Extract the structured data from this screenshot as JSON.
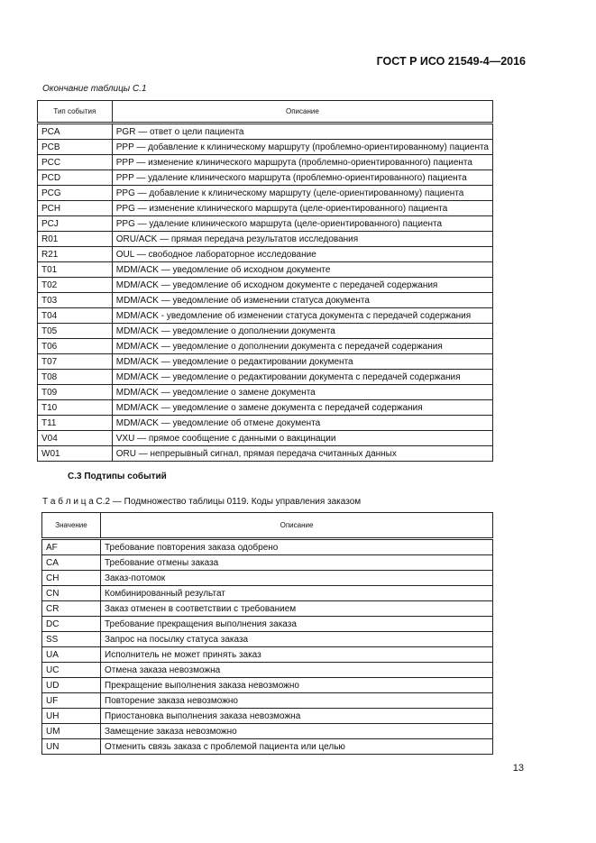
{
  "header": "ГОСТ Р ИСО 21549-4—2016",
  "table1": {
    "caption": "Окончание таблицы С.1",
    "columns": [
      "Тип события",
      "Описание"
    ],
    "rows": [
      [
        "PCA",
        "PGR — ответ о цели пациента"
      ],
      [
        "PCB",
        "PPP — добавление к клиническому маршруту (проблемно-ориентированному) пациента"
      ],
      [
        "PCC",
        "PPP — изменение клинического маршрута (проблемно-ориентированного) пациента"
      ],
      [
        "PCD",
        "PPP — удаление клинического маршрута (проблемно-ориентированного) пациента"
      ],
      [
        "PCG",
        "PPG — добавление к клиническому маршруту (целе-ориентированному) пациента"
      ],
      [
        "PCH",
        "PPG — изменение клинического маршрута (целе-ориентированного) пациента"
      ],
      [
        "PCJ",
        "PPG — удаление клинического маршрута (целе-ориентированного) пациента"
      ],
      [
        "R01",
        "ORU/ACK — прямая передача результатов исследования"
      ],
      [
        "R21",
        "OUL — свободное лабораторное исследование"
      ],
      [
        "T01",
        "MDM/ACK — уведомление об исходном документе"
      ],
      [
        "T02",
        "MDM/ACK — уведомление об исходном документе с передачей содержания"
      ],
      [
        "T03",
        "MDM/ACK — уведомление об изменении статуса документа"
      ],
      [
        "T04",
        "MDM/ACK - уведомление об изменении статуса документа с передачей содержания"
      ],
      [
        "T05",
        "MDM/ACK — уведомление о дополнении документа"
      ],
      [
        "T06",
        "MDM/ACK — уведомление о дополнении документа с передачей содержания"
      ],
      [
        "T07",
        "MDM/ACK — уведомление о редактировании документа"
      ],
      [
        "T08",
        "MDM/ACK — уведомление о редактировании документа с передачей содержания"
      ],
      [
        "T09",
        "MDM/ACK — уведомление о замене документа"
      ],
      [
        "T10",
        "MDM/ACK — уведомление о замене документа с передачей содержания"
      ],
      [
        "T11",
        "MDM/ACK — уведомление об отмене документа"
      ],
      [
        "V04",
        "VXU — прямое сообщение с данными о вакцинации"
      ],
      [
        "W01",
        "ORU — непрерывный сигнал, прямая передача считанных данных"
      ]
    ]
  },
  "section_title": "С.3 Подтипы событий",
  "table2": {
    "caption": "Т а б л и ц а  С.2 — Подмножество таблицы 0119. Коды управления заказом",
    "columns": [
      "Значение",
      "Описание"
    ],
    "rows": [
      [
        "AF",
        "Требование повторения заказа одобрено"
      ],
      [
        "CA",
        "Требование отмены заказа"
      ],
      [
        "CH",
        "Заказ-потомок"
      ],
      [
        "CN",
        "Комбинированный результат"
      ],
      [
        "CR",
        "Заказ отменен в соответствии с требованием"
      ],
      [
        "DC",
        "Требование прекращения выполнения заказа"
      ],
      [
        "SS",
        "Запрос на посылку статуса заказа"
      ],
      [
        "UA",
        "Исполнитель не может принять заказ"
      ],
      [
        "UC",
        "Отмена заказа невозможна"
      ],
      [
        "UD",
        "Прекращение выполнения заказа невозможно"
      ],
      [
        "UF",
        "Повторение заказа невозможно"
      ],
      [
        "UH",
        "Приостановка выполнения заказа невозможна"
      ],
      [
        "UM",
        "Замещение заказа невозможно"
      ],
      [
        "UN",
        "Отменить связь заказа с проблемой пациента или целью"
      ]
    ]
  },
  "page_number": "13"
}
